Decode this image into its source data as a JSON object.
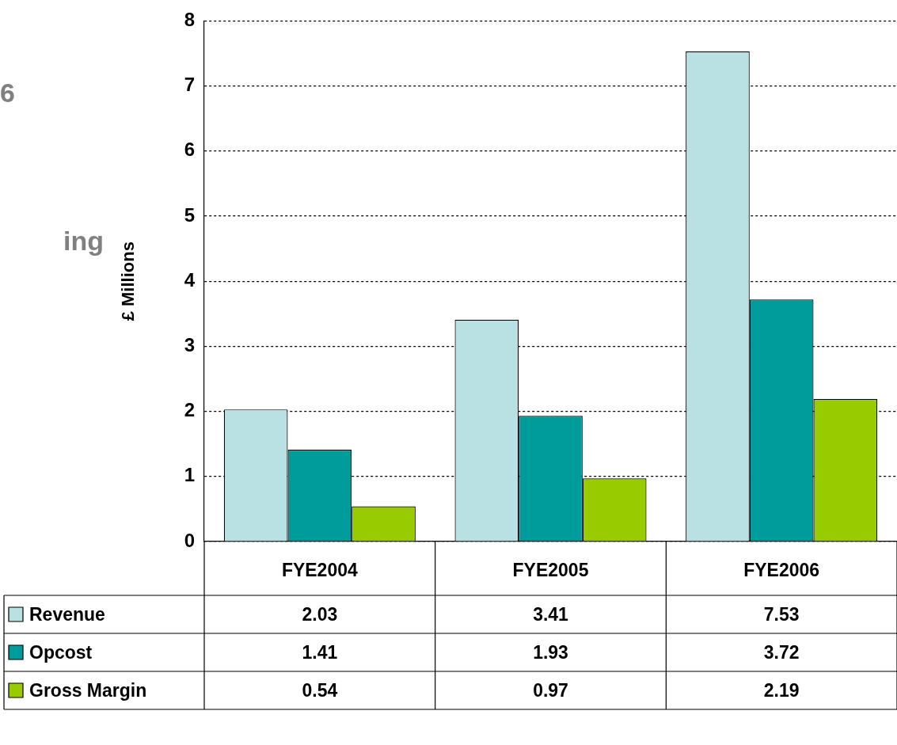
{
  "chart_data": {
    "type": "bar",
    "ylabel": "£ Millions",
    "categories": [
      "FYE2004",
      "FYE2005",
      "FYE2006"
    ],
    "series": [
      {
        "name": "Revenue",
        "color": "#b9e0e3",
        "values": [
          2.03,
          3.41,
          7.53
        ]
      },
      {
        "name": "Opcost",
        "color": "#009b9b",
        "values": [
          1.41,
          1.93,
          3.72
        ]
      },
      {
        "name": "Gross Margin",
        "color": "#99cc00",
        "values": [
          0.54,
          0.97,
          2.19
        ]
      }
    ],
    "legend": "bottom left",
    "ylim": [
      0,
      8
    ],
    "yticks": [
      0,
      1,
      2,
      3,
      4,
      5,
      6,
      7,
      8
    ],
    "grid": "y",
    "data_labels": true,
    "annotations": [
      "6",
      "ing"
    ]
  }
}
